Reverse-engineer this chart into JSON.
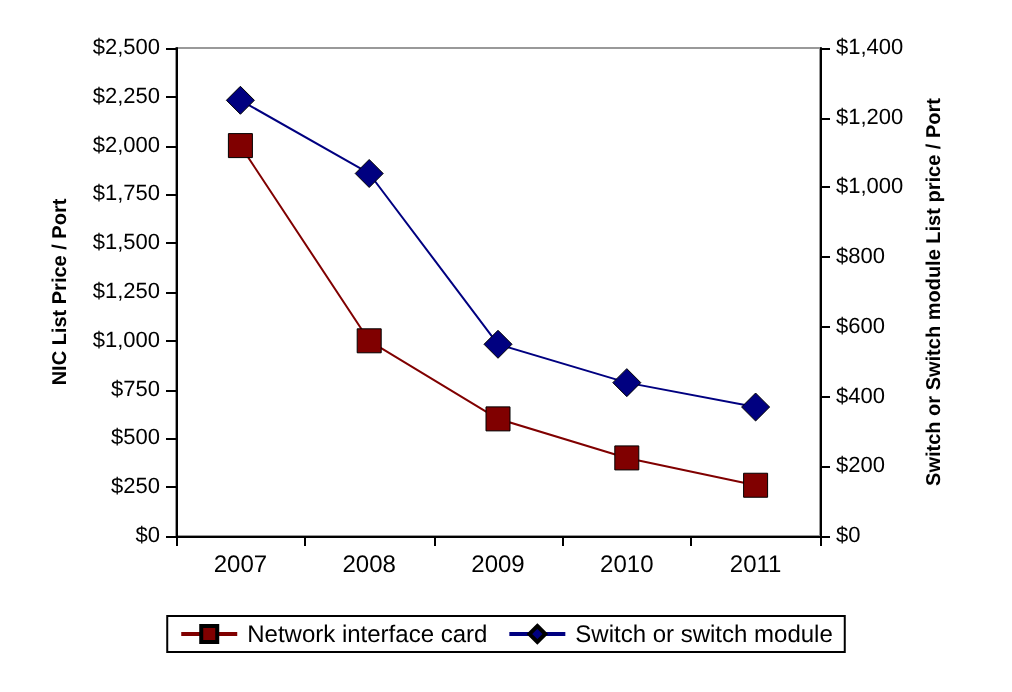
{
  "chart_data": {
    "type": "line",
    "categories": [
      "2007",
      "2008",
      "2009",
      "2010",
      "2011"
    ],
    "ylabel": "NIC List Price / Port",
    "y2label": "Switch or Switch module List price / Port",
    "series": [
      {
        "name": "Network interface card",
        "color": "#800000",
        "marker": "square",
        "values": [
          2000,
          1000,
          600,
          400,
          260
        ]
      },
      {
        "name": "Switch or switch module",
        "color": "#000080",
        "marker": "diamond",
        "axis": "y2",
        "values": [
          1250,
          1040,
          550,
          440,
          370
        ]
      }
    ],
    "ylim": [
      0,
      2500
    ],
    "yticks": [
      {
        "value": 0,
        "label": "$0"
      },
      {
        "value": 250,
        "label": "$250"
      },
      {
        "value": 500,
        "label": "$500"
      },
      {
        "value": 750,
        "label": "$750"
      },
      {
        "value": 1000,
        "label": "$1,000"
      },
      {
        "value": 1250,
        "label": "$1,250"
      },
      {
        "value": 1500,
        "label": "$1,500"
      },
      {
        "value": 1750,
        "label": "$1,750"
      },
      {
        "value": 2000,
        "label": "$2,000"
      },
      {
        "value": 2250,
        "label": "$2,250"
      },
      {
        "value": 2500,
        "label": "$2,500"
      }
    ],
    "y2lim": [
      0,
      1400
    ],
    "y2ticks": [
      {
        "value": 0,
        "label": "$0"
      },
      {
        "value": 200,
        "label": "$200"
      },
      {
        "value": 400,
        "label": "$400"
      },
      {
        "value": 600,
        "label": "$600"
      },
      {
        "value": 800,
        "label": "$800"
      },
      {
        "value": 1000,
        "label": "$1,000"
      },
      {
        "value": 1200,
        "label": "$1,200"
      },
      {
        "value": 1400,
        "label": "$1,400"
      }
    ],
    "grid": false,
    "legend": "bottom"
  }
}
